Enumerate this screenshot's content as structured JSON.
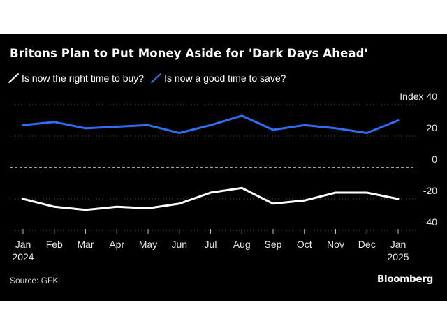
{
  "title": "Britons Plan to Put Money Aside for 'Dark Days Ahead'",
  "source": "Source: GFK",
  "brand": "Bloomberg",
  "colors": {
    "background": "#000000",
    "buy_series": "#ffffff",
    "save_series": "#2e6ff2",
    "grid": "#555555",
    "zero_line": "#ffffff"
  },
  "chart_data": {
    "type": "line",
    "title": "Britons Plan to Put Money Aside for 'Dark Days Ahead'",
    "ylabel": "Index",
    "ylim": [
      -40,
      40
    ],
    "yticks": [
      {
        "value": 40,
        "label": "Index  40"
      },
      {
        "value": 20,
        "label": "20"
      },
      {
        "value": 0,
        "label": "0"
      },
      {
        "value": -20,
        "label": "-20"
      },
      {
        "value": -40,
        "label": "-40"
      }
    ],
    "grid": "dotted horizontal",
    "zero_line": "dashed",
    "legend_position": "top-left",
    "categories": [
      {
        "month": "Jan",
        "year": "2024"
      },
      {
        "month": "Feb",
        "year": ""
      },
      {
        "month": "Mar",
        "year": ""
      },
      {
        "month": "Apr",
        "year": ""
      },
      {
        "month": "May",
        "year": ""
      },
      {
        "month": "Jun",
        "year": ""
      },
      {
        "month": "Jul",
        "year": ""
      },
      {
        "month": "Aug",
        "year": ""
      },
      {
        "month": "Sep",
        "year": ""
      },
      {
        "month": "Oct",
        "year": ""
      },
      {
        "month": "Nov",
        "year": ""
      },
      {
        "month": "Dec",
        "year": ""
      },
      {
        "month": "Jan",
        "year": "2025"
      }
    ],
    "series": [
      {
        "name": "Is now the right time to buy?",
        "color": "#ffffff",
        "values": [
          -20,
          -25,
          -27,
          -25,
          -26,
          -23,
          -16,
          -13,
          -23,
          -21,
          -16,
          -16,
          -20
        ]
      },
      {
        "name": "Is now a good time to save?",
        "color": "#2e6ff2",
        "values": [
          27,
          29,
          25,
          26,
          27,
          22,
          27,
          33,
          24,
          27,
          25,
          22,
          30
        ]
      }
    ]
  }
}
